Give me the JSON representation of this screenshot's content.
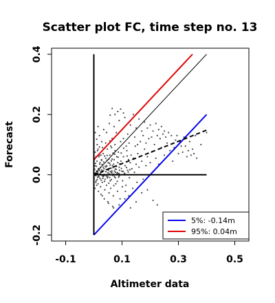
{
  "chart_data": {
    "type": "scatter",
    "title": "Scatter plot FC, time step no. 13",
    "xlabel": "Altimeter data",
    "ylabel": "Forecast",
    "xlim": [
      -0.15,
      0.55
    ],
    "ylim": [
      -0.22,
      0.42
    ],
    "x_ticks": [
      -0.1,
      0.1,
      0.3,
      0.5
    ],
    "x_tick_labels": [
      "-0.1",
      "0.1",
      "0.3",
      "0.5"
    ],
    "y_ticks": [
      -0.2,
      0.0,
      0.2,
      0.4
    ],
    "y_tick_labels": [
      "-0.2",
      "0.0",
      "0.2",
      "0.4"
    ],
    "grid": false,
    "legend_position": "bottom-right",
    "reference_lines": [
      {
        "kind": "identity",
        "color": "#000000",
        "style": "solid",
        "x": [
          0.0,
          0.4
        ],
        "y": [
          0.0,
          0.4
        ]
      },
      {
        "kind": "upper",
        "color": "#e00000",
        "style": "solid",
        "x": [
          0.0,
          0.35
        ],
        "y": [
          0.05,
          0.4
        ]
      },
      {
        "kind": "lower",
        "color": "#0000ee",
        "style": "solid",
        "x": [
          0.0,
          0.4
        ],
        "y": [
          -0.2,
          0.2
        ]
      },
      {
        "kind": "regression",
        "color": "#000000",
        "style": "dashed",
        "x": [
          0.0,
          0.4
        ],
        "y": [
          0.0,
          0.148
        ]
      },
      {
        "kind": "zero-horizontal",
        "color": "#000000",
        "style": "solid",
        "x": [
          0.0,
          0.4
        ],
        "y": [
          0.0,
          0.0
        ]
      },
      {
        "kind": "zero-vertical",
        "color": "#000000",
        "style": "solid",
        "x": [
          0.0,
          0.0
        ],
        "y": [
          -0.2,
          0.4
        ]
      }
    ],
    "series": [
      {
        "color": "#0000ee",
        "legend_label": "5%: -0.14m"
      },
      {
        "color": "#e00000",
        "legend_label": "95%:  0.04m"
      }
    ],
    "points": [
      [
        0.002,
        0.004
      ],
      [
        0.006,
        -0.003
      ],
      [
        0.01,
        0.012
      ],
      [
        0.013,
        -0.008
      ],
      [
        0.016,
        0.02
      ],
      [
        0.019,
        0.002
      ],
      [
        0.022,
        -0.012
      ],
      [
        0.025,
        0.008
      ],
      [
        0.028,
        0.016
      ],
      [
        0.031,
        -0.004
      ],
      [
        0.034,
        0.025
      ],
      [
        0.037,
        0.001
      ],
      [
        0.04,
        -0.015
      ],
      [
        0.043,
        0.01
      ],
      [
        0.046,
        0.03
      ],
      [
        0.049,
        -0.006
      ],
      [
        0.052,
        0.014
      ],
      [
        0.055,
        0.003
      ],
      [
        0.058,
        -0.02
      ],
      [
        0.061,
        0.022
      ],
      [
        0.064,
        0.006
      ],
      [
        0.067,
        -0.002
      ],
      [
        0.07,
        0.035
      ],
      [
        0.073,
        0.012
      ],
      [
        0.076,
        -0.01
      ],
      [
        0.079,
        0.018
      ],
      [
        0.082,
        0.004
      ],
      [
        0.085,
        0.04
      ],
      [
        0.088,
        -0.008
      ],
      [
        0.091,
        0.015
      ],
      [
        0.004,
        0.03
      ],
      [
        0.008,
        -0.02
      ],
      [
        0.011,
        0.045
      ],
      [
        0.015,
        -0.03
      ],
      [
        0.018,
        0.06
      ],
      [
        0.021,
        0.035
      ],
      [
        0.024,
        -0.04
      ],
      [
        0.027,
        0.05
      ],
      [
        0.03,
        -0.025
      ],
      [
        0.033,
        0.07
      ],
      [
        0.036,
        0.02
      ],
      [
        0.039,
        -0.05
      ],
      [
        0.042,
        0.055
      ],
      [
        0.045,
        -0.035
      ],
      [
        0.048,
        0.085
      ],
      [
        0.051,
        0.04
      ],
      [
        0.054,
        -0.06
      ],
      [
        0.057,
        0.065
      ],
      [
        0.06,
        -0.045
      ],
      [
        0.063,
        0.09
      ],
      [
        0.066,
        0.03
      ],
      [
        0.069,
        -0.07
      ],
      [
        0.072,
        0.05
      ],
      [
        0.075,
        0.1
      ],
      [
        0.078,
        -0.03
      ],
      [
        0.081,
        0.06
      ],
      [
        0.084,
        -0.055
      ],
      [
        0.087,
        0.075
      ],
      [
        0.09,
        0.025
      ],
      [
        0.093,
        -0.08
      ],
      [
        0.096,
        0.045
      ],
      [
        0.099,
        0.012
      ],
      [
        0.102,
        -0.02
      ],
      [
        0.105,
        0.06
      ],
      [
        0.108,
        0.005
      ],
      [
        0.111,
        0.03
      ],
      [
        0.114,
        -0.035
      ],
      [
        0.117,
        0.08
      ],
      [
        0.12,
        0.015
      ],
      [
        0.123,
        0.05
      ],
      [
        0.126,
        -0.01
      ],
      [
        0.129,
        0.04
      ],
      [
        0.132,
        0.065
      ],
      [
        0.135,
        0.02
      ],
      [
        0.138,
        -0.045
      ],
      [
        0.141,
        0.055
      ],
      [
        0.144,
        0.008
      ],
      [
        0.147,
        0.095
      ],
      [
        0.15,
        0.035
      ],
      [
        0.153,
        -0.025
      ],
      [
        0.156,
        0.07
      ],
      [
        0.16,
        0.025
      ],
      [
        0.165,
        0.11
      ],
      [
        0.17,
        0.045
      ],
      [
        0.175,
        -0.015
      ],
      [
        0.18,
        0.085
      ],
      [
        0.185,
        0.03
      ],
      [
        0.19,
        0.06
      ],
      [
        0.195,
        0.12
      ],
      [
        0.2,
        0.04
      ],
      [
        0.205,
        0.075
      ],
      [
        0.21,
        0.01
      ],
      [
        0.215,
        0.1
      ],
      [
        0.22,
        0.055
      ],
      [
        0.225,
        0.13
      ],
      [
        0.23,
        0.035
      ],
      [
        0.24,
        0.09
      ],
      [
        0.25,
        0.065
      ],
      [
        0.26,
        0.105
      ],
      [
        0.27,
        0.08
      ],
      [
        0.28,
        0.045
      ],
      [
        0.29,
        0.115
      ],
      [
        0.3,
        0.07
      ],
      [
        0.31,
        0.095
      ],
      [
        0.32,
        0.125
      ],
      [
        0.33,
        0.06
      ],
      [
        0.34,
        0.11
      ],
      [
        0.35,
        0.085
      ],
      [
        0.36,
        0.13
      ],
      [
        0.38,
        0.1
      ],
      [
        0.4,
        0.14
      ],
      [
        0.012,
        0.1
      ],
      [
        0.02,
        0.13
      ],
      [
        0.028,
        0.11
      ],
      [
        0.035,
        0.15
      ],
      [
        0.045,
        0.14
      ],
      [
        0.055,
        0.17
      ],
      [
        0.065,
        0.12
      ],
      [
        0.072,
        0.16
      ],
      [
        0.08,
        0.14
      ],
      [
        0.09,
        0.18
      ],
      [
        0.1,
        0.15
      ],
      [
        0.11,
        0.19
      ],
      [
        0.12,
        0.135
      ],
      [
        0.13,
        0.165
      ],
      [
        0.14,
        0.2
      ],
      [
        0.15,
        0.155
      ],
      [
        0.16,
        0.185
      ],
      [
        0.17,
        0.145
      ],
      [
        0.18,
        0.175
      ],
      [
        0.19,
        0.155
      ],
      [
        0.2,
        0.165
      ],
      [
        0.21,
        0.145
      ],
      [
        0.22,
        0.17
      ],
      [
        0.23,
        0.15
      ],
      [
        0.24,
        0.16
      ],
      [
        0.25,
        0.145
      ],
      [
        0.065,
        0.22
      ],
      [
        0.075,
        0.2
      ],
      [
        0.085,
        0.21
      ],
      [
        0.03,
        -0.07
      ],
      [
        0.05,
        -0.09
      ],
      [
        0.07,
        -0.11
      ],
      [
        0.09,
        -0.1
      ],
      [
        0.11,
        -0.08
      ],
      [
        0.13,
        -0.11
      ],
      [
        0.15,
        -0.09
      ],
      [
        0.17,
        -0.06
      ],
      [
        0.19,
        -0.05
      ],
      [
        0.21,
        -0.085
      ],
      [
        0.225,
        -0.1
      ],
      [
        0.005,
        0.075
      ],
      [
        0.015,
        0.085
      ],
      [
        0.025,
        0.065
      ],
      [
        0.04,
        0.09
      ],
      [
        0.06,
        0.095
      ],
      [
        0.075,
        0.08
      ],
      [
        0.095,
        0.11
      ],
      [
        0.105,
        0.12
      ],
      [
        0.115,
        0.095
      ],
      [
        0.125,
        0.105
      ],
      [
        0.145,
        0.125
      ],
      [
        0.155,
        0.1
      ],
      [
        0.175,
        0.13
      ],
      [
        0.185,
        0.105
      ],
      [
        0.205,
        0.125
      ],
      [
        0.235,
        0.12
      ],
      [
        0.245,
        0.135
      ],
      [
        0.255,
        0.125
      ],
      [
        0.265,
        0.14
      ],
      [
        0.275,
        0.13
      ],
      [
        0.285,
        0.09
      ],
      [
        0.295,
        0.13
      ],
      [
        0.305,
        0.11
      ],
      [
        0.315,
        0.075
      ],
      [
        0.325,
        0.095
      ],
      [
        0.335,
        0.08
      ],
      [
        0.345,
        0.065
      ],
      [
        0.355,
        0.07
      ],
      [
        0.365,
        0.055
      ],
      [
        0.001,
        -0.01
      ],
      [
        0.003,
        0.018
      ],
      [
        0.007,
        -0.025
      ],
      [
        0.009,
        0.028
      ],
      [
        0.012,
        -0.016
      ],
      [
        0.014,
        0.006
      ],
      [
        0.017,
        -0.005
      ],
      [
        0.02,
        0.015
      ],
      [
        0.023,
        0.024
      ],
      [
        0.026,
        -0.018
      ],
      [
        0.029,
        0.034
      ],
      [
        0.032,
        -0.012
      ],
      [
        0.035,
        0.042
      ],
      [
        0.038,
        -0.022
      ],
      [
        0.041,
        0.028
      ],
      [
        0.044,
        -0.004
      ],
      [
        0.047,
        0.048
      ],
      [
        0.05,
        0.018
      ],
      [
        0.053,
        -0.028
      ],
      [
        0.056,
        0.038
      ],
      [
        0.059,
        0.01
      ],
      [
        0.062,
        -0.016
      ],
      [
        0.065,
        0.052
      ],
      [
        0.068,
        0.024
      ],
      [
        0.071,
        -0.036
      ],
      [
        0.074,
        0.068
      ],
      [
        0.077,
        0.008
      ],
      [
        0.08,
        0.028
      ],
      [
        0.083,
        -0.022
      ],
      [
        0.086,
        0.058
      ],
      [
        0.089,
        0.004
      ],
      [
        0.092,
        0.036
      ],
      [
        0.097,
        0.072
      ],
      [
        0.101,
        -0.04
      ],
      [
        0.106,
        0.088
      ],
      [
        0.112,
        -0.055
      ],
      [
        0.118,
        0.062
      ],
      [
        0.124,
        -0.07
      ],
      [
        0.028,
        0.048
      ],
      [
        0.033,
        -0.006
      ],
      [
        0.038,
        0.062
      ],
      [
        0.043,
        0.026
      ],
      [
        0.048,
        -0.01
      ],
      [
        0.053,
        0.052
      ],
      [
        0.058,
        0.032
      ],
      [
        0.063,
        0.008
      ],
      [
        0.068,
        0.072
      ],
      [
        0.073,
        -0.006
      ],
      [
        0.002,
        0.05
      ],
      [
        0.004,
        -0.045
      ],
      [
        0.006,
        0.038
      ],
      [
        0.008,
        0.06
      ],
      [
        0.01,
        -0.035
      ],
      [
        0.013,
        0.08
      ],
      [
        0.016,
        -0.055
      ],
      [
        0.019,
        0.065
      ],
      [
        0.022,
        0.04
      ],
      [
        0.025,
        -0.065
      ],
      [
        0.031,
        0.09
      ],
      [
        0.037,
        -0.08
      ],
      [
        0.042,
        0.105
      ],
      [
        0.047,
        0.064
      ],
      [
        0.052,
        -0.095
      ],
      [
        0.057,
        0.112
      ],
      [
        0.062,
        0.046
      ],
      [
        0.067,
        -0.105
      ],
      [
        0.005,
        0.14
      ],
      [
        0.01,
        0.118
      ],
      [
        0.015,
        0.16
      ],
      [
        0.02,
        0.092
      ],
      [
        0.058,
        0.198
      ],
      [
        0.095,
        0.218
      ],
      [
        0.105,
        0.205
      ],
      [
        0.01,
        0.0
      ],
      [
        0.014,
        0.011
      ],
      [
        0.018,
        -0.007
      ],
      [
        0.024,
        0.004
      ],
      [
        0.03,
        0.009
      ],
      [
        0.036,
        -0.003
      ],
      [
        0.044,
        0.017
      ],
      [
        0.05,
        0.006
      ],
      [
        0.056,
        -0.009
      ],
      [
        0.064,
        0.013
      ],
      [
        0.07,
        0.002
      ],
      [
        0.076,
        0.019
      ],
      [
        0.084,
        0.007
      ],
      [
        0.09,
        -0.004
      ],
      [
        0.098,
        0.021
      ],
      [
        0.104,
        0.011
      ],
      [
        0.11,
        0.003
      ],
      [
        0.116,
        0.024
      ],
      [
        0.122,
        0.009
      ],
      [
        0.128,
        0.017
      ]
    ]
  }
}
